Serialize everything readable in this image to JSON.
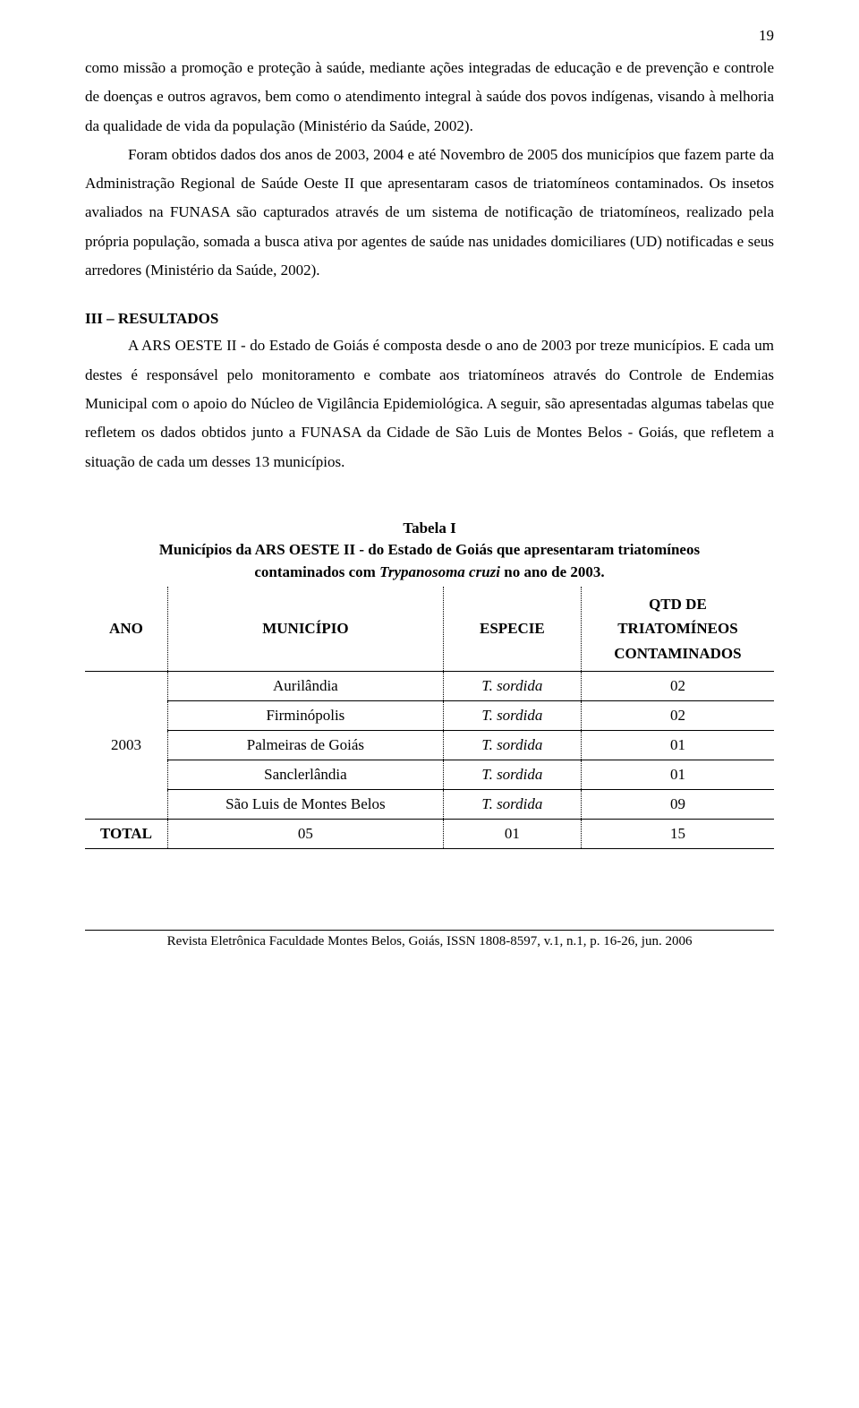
{
  "page_number": "19",
  "paragraph1": "como missão a promoção e proteção à saúde, mediante ações integradas de educação e de prevenção e controle de doenças e outros agravos, bem como o atendimento integral à saúde dos povos indígenas, visando à melhoria da qualidade de vida da população (Ministério da Saúde, 2002).",
  "paragraph2": "Foram obtidos dados dos anos de 2003, 2004 e até Novembro de 2005 dos municípios que fazem parte da Administração Regional de Saúde Oeste II que apresentaram casos de triatomíneos contaminados. Os insetos avaliados na FUNASA são capturados através de um sistema de notificação de triatomíneos, realizado pela própria população, somada a busca ativa por agentes de saúde nas unidades domiciliares (UD) notificadas e seus arredores (Ministério da Saúde, 2002).",
  "section3_heading": "III – RESULTADOS",
  "paragraph3": "A ARS OESTE II - do Estado de Goiás é composta desde o ano de 2003 por treze municípios. E cada um destes é responsável pelo monitoramento e combate aos triatomíneos através do Controle de Endemias Municipal com o apoio do Núcleo de Vigilância Epidemiológica. A seguir, são apresentadas algumas tabelas que refletem os dados obtidos junto a FUNASA da Cidade de São Luis de Montes Belos - Goiás, que refletem a situação de cada um desses 13 municípios.",
  "table": {
    "caption": "Tabela I",
    "subcaption_line1": "Municípios da ARS OESTE II - do Estado de Goiás que apresentaram triatomíneos",
    "subcaption_line2_pre": "contaminados com ",
    "subcaption_line2_italic": "Trypanosoma cruzi",
    "subcaption_line2_post": " no ano de 2003.",
    "headers": {
      "ano": "ANO",
      "municipio": "MUNICÍPIO",
      "especie": "ESPECIE",
      "qtd_line1": "QTD DE",
      "qtd_line2": "TRIATOMÍNEOS",
      "qtd_line3": "CONTAMINADOS"
    },
    "year": "2003",
    "rows": [
      {
        "municipio": "Aurilândia",
        "especie": "T. sordida",
        "qtd": "02"
      },
      {
        "municipio": "Firminópolis",
        "especie": "T. sordida",
        "qtd": "02"
      },
      {
        "municipio": "Palmeiras de Goiás",
        "especie": "T. sordida",
        "qtd": "01"
      },
      {
        "municipio": "Sanclerlândia",
        "especie": "T. sordida",
        "qtd": "01"
      },
      {
        "municipio": "São Luis de Montes Belos",
        "especie": "T. sordida",
        "qtd": "09"
      }
    ],
    "total": {
      "label": "TOTAL",
      "mun_count": "05",
      "esp_count": "01",
      "qtd_total": "15"
    }
  },
  "footer": "Revista Eletrônica Faculdade Montes Belos, Goiás, ISSN 1808-8597, v.1, n.1, p. 16-26, jun. 2006"
}
